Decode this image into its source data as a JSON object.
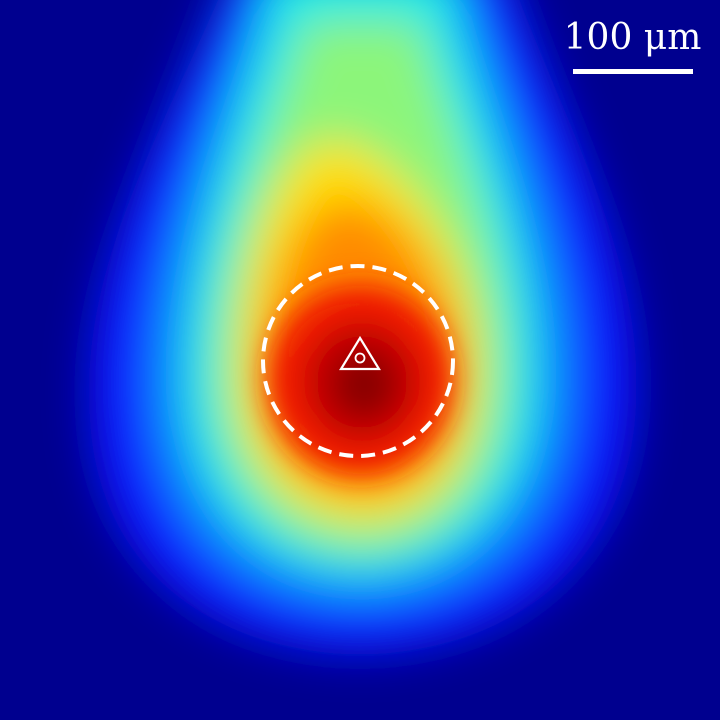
{
  "image": {
    "colormap": "jet",
    "background_color": "#00008f",
    "marker_color": "#ffffff"
  },
  "scale_bar": {
    "label": "100 μm",
    "color": "#ffffff"
  },
  "overlay": {
    "dashed_circle": "dashed-circle",
    "marker_icon": "triangle-with-circle-icon"
  }
}
